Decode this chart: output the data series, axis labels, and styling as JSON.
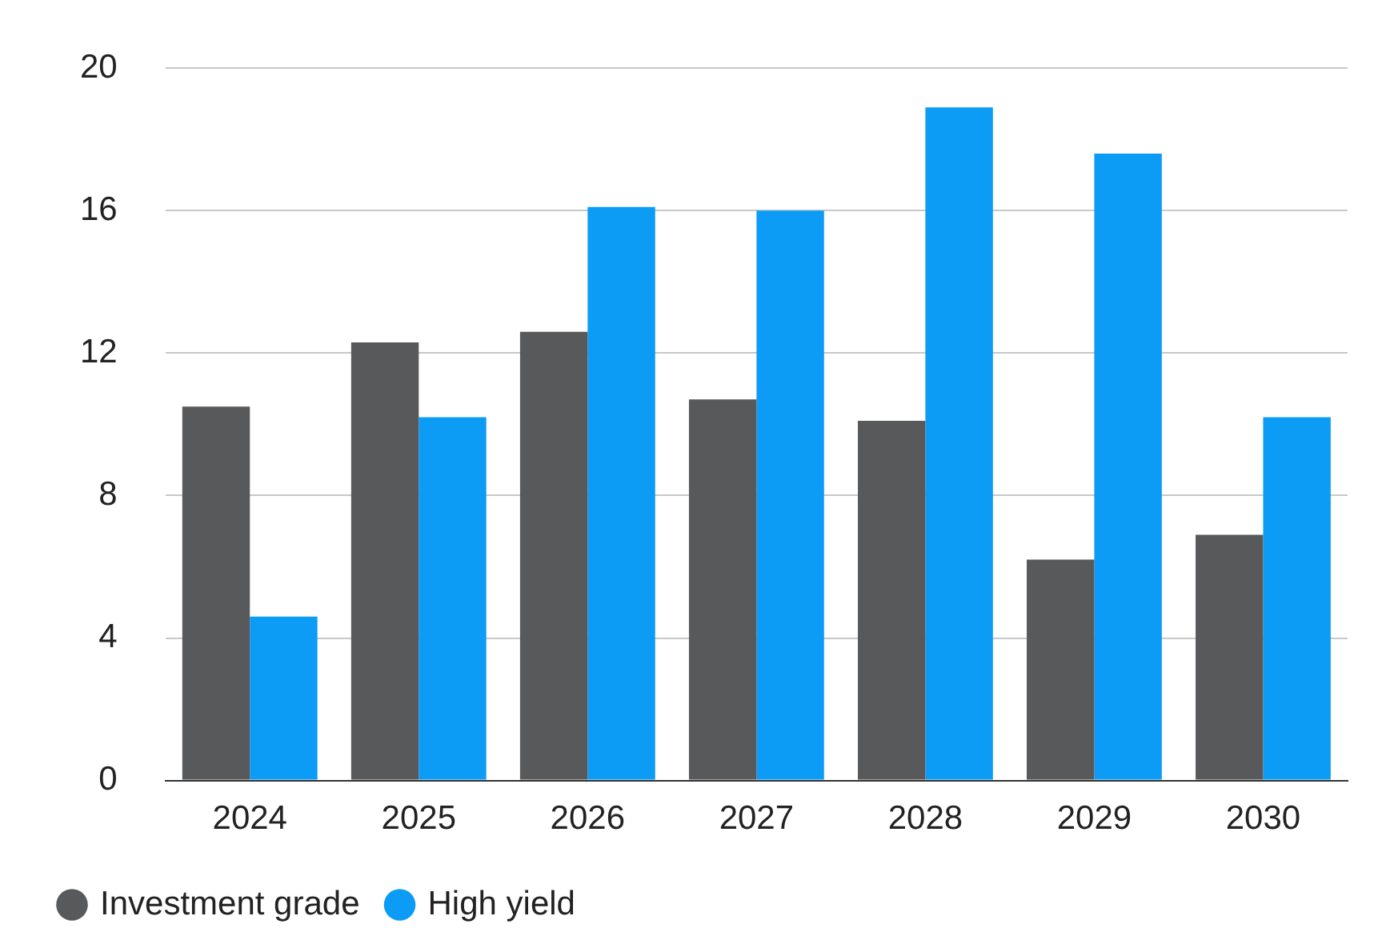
{
  "chart_data": {
    "type": "bar",
    "categories": [
      "2024",
      "2025",
      "2026",
      "2027",
      "2028",
      "2029",
      "2030"
    ],
    "series": [
      {
        "name": "Investment grade",
        "color": "#58595b",
        "values": [
          10.5,
          12.3,
          12.6,
          10.7,
          10.1,
          6.2,
          6.9
        ]
      },
      {
        "name": "High yield",
        "color": "#0d9cf5",
        "values": [
          4.6,
          10.2,
          16.1,
          16.0,
          18.9,
          17.6,
          10.2
        ]
      }
    ],
    "ylim": [
      0,
      20
    ],
    "yticks": [
      0,
      4,
      8,
      12,
      16,
      20
    ],
    "grid": "y",
    "legend": "bottom left"
  }
}
